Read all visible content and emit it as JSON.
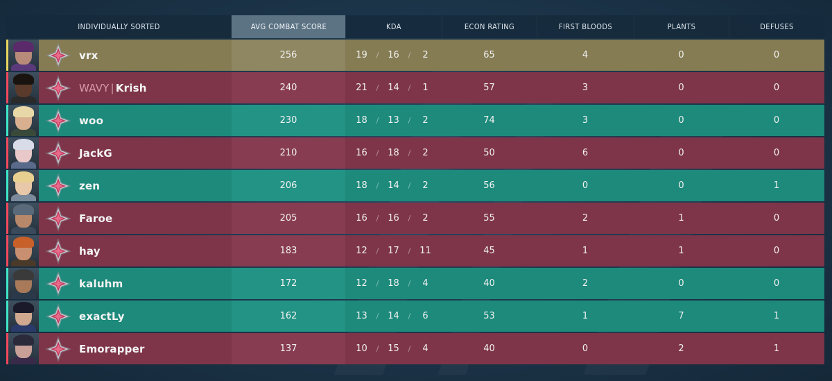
{
  "header": {
    "name": "INDIVIDUALLY SORTED",
    "acs": "AVG COMBAT SCORE",
    "kda": "KDA",
    "econ": "ECON RATING",
    "first_bloods": "FIRST BLOODS",
    "plants": "PLANTS",
    "defuses": "DEFUSES"
  },
  "separator": "/",
  "colors": {
    "self_row": "#857c54",
    "enemy_row": "#7e3549",
    "ally_row": "#1d8a7b",
    "self_accent": "#e9d65f",
    "enemy_accent": "#f2495c",
    "ally_accent": "#3fe6c8"
  },
  "players": [
    {
      "tag": "",
      "name": "vrx",
      "team": "self",
      "acs": "256",
      "k": "19",
      "d": "16",
      "a": "2",
      "econ": "65",
      "fb": "4",
      "plants": "0",
      "defuses": "0",
      "agent_icon": "agent-portrait-icon"
    },
    {
      "tag": "WAVY",
      "name": "Krish",
      "team": "enemy",
      "acs": "240",
      "k": "21",
      "d": "14",
      "a": "1",
      "econ": "57",
      "fb": "3",
      "plants": "0",
      "defuses": "0",
      "agent_icon": "agent-portrait-icon"
    },
    {
      "tag": "",
      "name": "woo",
      "team": "ally",
      "acs": "230",
      "k": "18",
      "d": "13",
      "a": "2",
      "econ": "74",
      "fb": "3",
      "plants": "0",
      "defuses": "0",
      "agent_icon": "agent-portrait-icon"
    },
    {
      "tag": "",
      "name": "JackG",
      "team": "enemy",
      "acs": "210",
      "k": "16",
      "d": "18",
      "a": "2",
      "econ": "50",
      "fb": "6",
      "plants": "0",
      "defuses": "0",
      "agent_icon": "agent-portrait-icon"
    },
    {
      "tag": "",
      "name": "zen",
      "team": "ally",
      "acs": "206",
      "k": "18",
      "d": "14",
      "a": "2",
      "econ": "56",
      "fb": "0",
      "plants": "0",
      "defuses": "1",
      "agent_icon": "agent-portrait-icon"
    },
    {
      "tag": "",
      "name": "Faroe",
      "team": "enemy",
      "acs": "205",
      "k": "16",
      "d": "16",
      "a": "2",
      "econ": "55",
      "fb": "2",
      "plants": "1",
      "defuses": "0",
      "agent_icon": "agent-portrait-icon"
    },
    {
      "tag": "",
      "name": "hay",
      "team": "enemy",
      "acs": "183",
      "k": "12",
      "d": "17",
      "a": "11",
      "econ": "45",
      "fb": "1",
      "plants": "1",
      "defuses": "0",
      "agent_icon": "agent-portrait-icon"
    },
    {
      "tag": "",
      "name": "kaluhm",
      "team": "ally",
      "acs": "172",
      "k": "12",
      "d": "18",
      "a": "4",
      "econ": "40",
      "fb": "2",
      "plants": "0",
      "defuses": "0",
      "agent_icon": "agent-portrait-icon"
    },
    {
      "tag": "",
      "name": "exactLy",
      "team": "ally",
      "acs": "162",
      "k": "13",
      "d": "14",
      "a": "6",
      "econ": "53",
      "fb": "1",
      "plants": "7",
      "defuses": "1",
      "agent_icon": "agent-portrait-icon"
    },
    {
      "tag": "",
      "name": "Emorapper",
      "team": "enemy",
      "acs": "137",
      "k": "10",
      "d": "15",
      "a": "4",
      "econ": "40",
      "fb": "0",
      "plants": "2",
      "defuses": "1",
      "agent_icon": "agent-portrait-icon"
    }
  ]
}
